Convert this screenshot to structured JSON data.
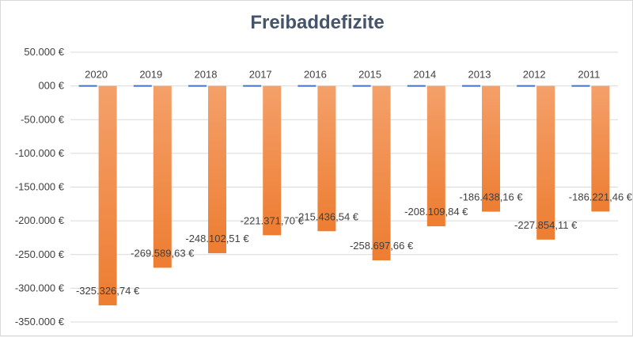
{
  "chart_data": {
    "type": "bar",
    "title": "Freibaddefizite",
    "xlabel": "",
    "ylabel": "",
    "categories": [
      "2020",
      "2019",
      "2018",
      "2017",
      "2016",
      "2015",
      "2014",
      "2013",
      "2012",
      "2011"
    ],
    "series": [
      {
        "values": [
          0,
          0,
          0,
          0,
          0,
          0,
          0,
          0,
          0,
          0
        ],
        "color": "#4472c4"
      },
      {
        "values": [
          -325326.74,
          -269589.63,
          -248102.51,
          -221371.7,
          -215436.54,
          -258697.66,
          -208109.84,
          -186438.16,
          -227854.11,
          -186221.46
        ],
        "labels": [
          "-325.326,74 €",
          "-269.589,63 €",
          "-248.102,51 €",
          "-221.371,70 €",
          "-215.436,54 €",
          "-258.697,66 €",
          "-208.109,84 €",
          "-186.438,16 €",
          "-227.854,11 €",
          "-186.221,46 €"
        ],
        "color": "#ed7d31",
        "color_light": "#f4a06a"
      }
    ],
    "ylim": [
      -350000,
      50000
    ],
    "yticks": [
      50000,
      0,
      -50000,
      -100000,
      -150000,
      -200000,
      -250000,
      -300000,
      -350000
    ],
    "ytick_labels": [
      "50.000 €",
      "000 €",
      "-50.000 €",
      "-100.000 €",
      "-150.000 €",
      "-200.000 €",
      "-250.000 €",
      "-300.000 €",
      "-350.000 €"
    ],
    "grid": true,
    "legend": "none"
  }
}
